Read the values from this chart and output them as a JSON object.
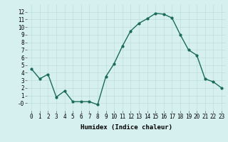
{
  "x": [
    0,
    1,
    2,
    3,
    4,
    5,
    6,
    7,
    8,
    9,
    10,
    11,
    12,
    13,
    14,
    15,
    16,
    17,
    18,
    19,
    20,
    21,
    22,
    23
  ],
  "y": [
    4.5,
    3.2,
    3.8,
    0.8,
    1.6,
    0.2,
    0.2,
    0.2,
    -0.2,
    3.5,
    5.2,
    7.5,
    9.5,
    10.5,
    11.1,
    11.8,
    11.7,
    11.2,
    9.0,
    7.0,
    6.3,
    3.2,
    2.8,
    2.0
  ],
  "line_color": "#1a6b5a",
  "marker": "o",
  "markersize": 2.0,
  "linewidth": 1.0,
  "bg_color": "#d6f0ef",
  "grid_color": "#c0dedd",
  "xlabel": "Humidex (Indice chaleur)",
  "xlabel_fontsize": 6.5,
  "tick_fontsize": 5.5,
  "ylim": [
    -1,
    13
  ],
  "xlim": [
    -0.5,
    23.5
  ],
  "yticks": [
    0,
    1,
    2,
    3,
    4,
    5,
    6,
    7,
    8,
    9,
    10,
    11,
    12
  ],
  "ytick_labels": [
    "-0",
    "1",
    "2",
    "3",
    "4",
    "5",
    "6",
    "7",
    "8",
    "9",
    "10",
    "11",
    "12"
  ],
  "xticks": [
    0,
    1,
    2,
    3,
    4,
    5,
    6,
    7,
    8,
    9,
    10,
    11,
    12,
    13,
    14,
    15,
    16,
    17,
    18,
    19,
    20,
    21,
    22,
    23
  ]
}
